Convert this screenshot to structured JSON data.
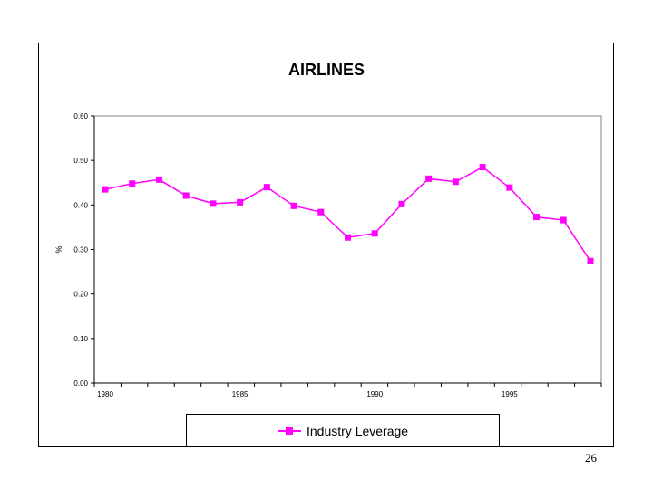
{
  "chart_data": {
    "type": "line",
    "title": "AIRLINES",
    "ylabel": "%",
    "xlabel": "",
    "x": [
      1980,
      1981,
      1982,
      1983,
      1984,
      1985,
      1986,
      1987,
      1988,
      1989,
      1990,
      1991,
      1992,
      1993,
      1994,
      1995,
      1996,
      1997,
      1998
    ],
    "series": [
      {
        "name": "Industry Leverage",
        "values": [
          0.435,
          0.448,
          0.457,
          0.421,
          0.403,
          0.406,
          0.44,
          0.398,
          0.384,
          0.327,
          0.336,
          0.402,
          0.459,
          0.452,
          0.485,
          0.439,
          0.373,
          0.366,
          0.274
        ]
      }
    ],
    "ylim": [
      0,
      0.6
    ],
    "yticks": [
      "0.00",
      "0.10",
      "0.20",
      "0.30",
      "0.40",
      "0.50",
      "0.60"
    ],
    "xticks_labeled": [
      "1980",
      "1985",
      "1990",
      "1995"
    ],
    "grid": false,
    "legend_position": "bottom",
    "colors": {
      "series": "#ff00ff",
      "axis": "#000000",
      "plot_border": "#808080"
    }
  },
  "page": {
    "number": "26"
  }
}
